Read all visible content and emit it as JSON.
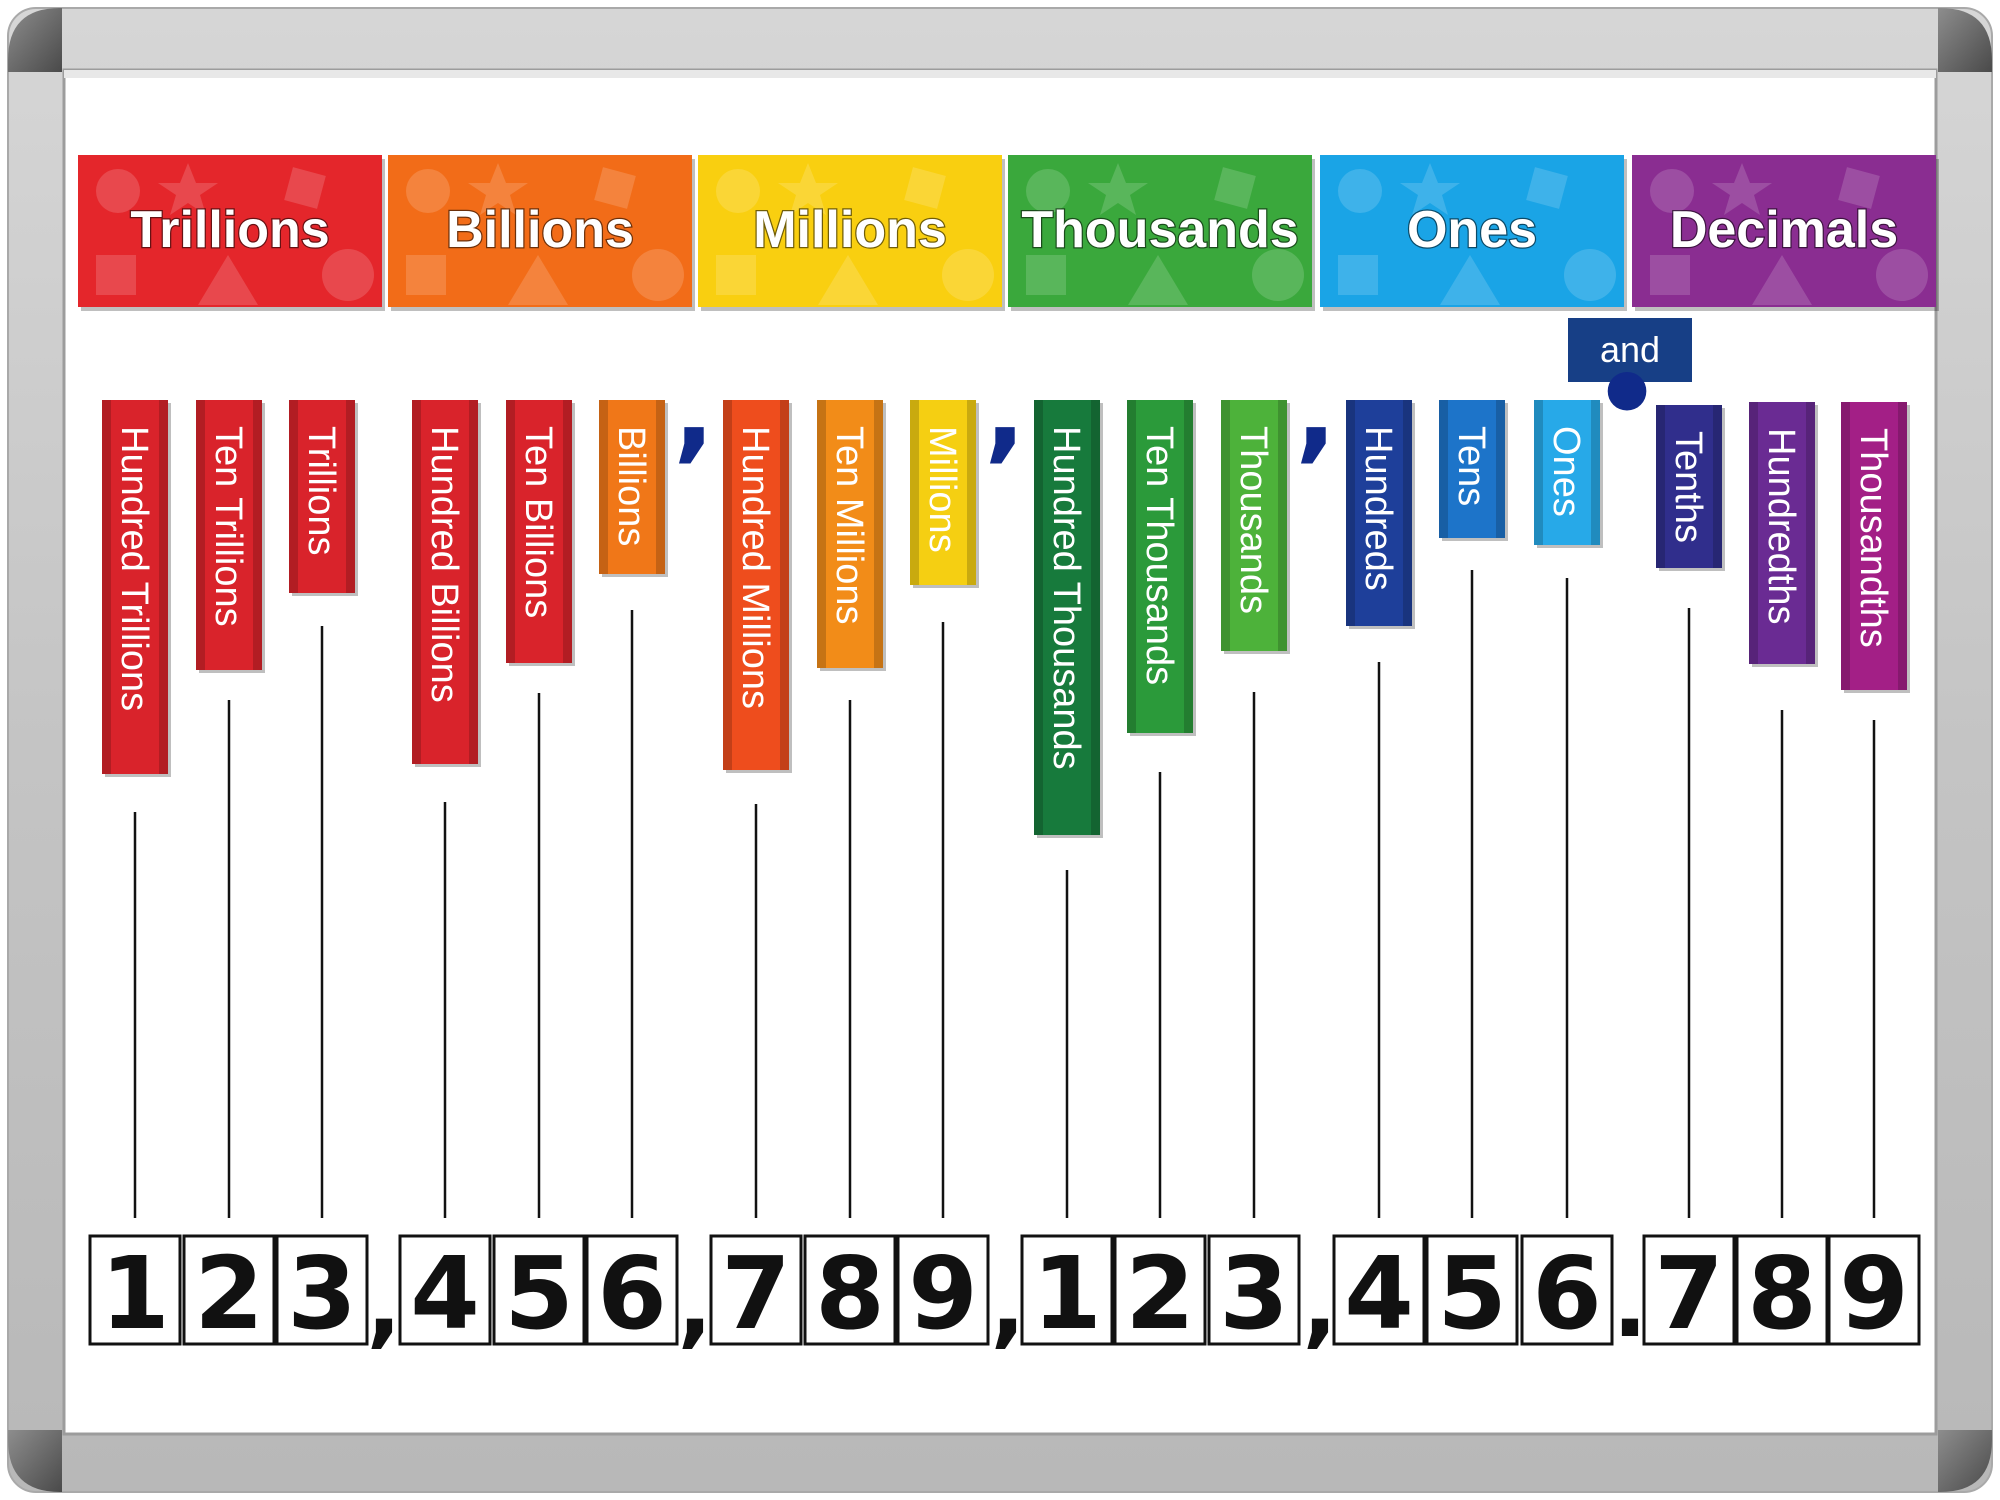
{
  "headers": [
    {
      "label": "Trillions",
      "color": "#e4262b"
    },
    {
      "label": "Billions",
      "color": "#f26c18"
    },
    {
      "label": "Millions",
      "color": "#f9cf10"
    },
    {
      "label": "Thousands",
      "color": "#3aa83c"
    },
    {
      "label": "Ones",
      "color": "#1aa4e6"
    },
    {
      "label": "Decimals",
      "color": "#8a2d91"
    }
  ],
  "connector": {
    "label": "and",
    "color": "#173f86"
  },
  "place_tags": [
    {
      "label": "Hundred Trillions",
      "color": "#d9232b"
    },
    {
      "label": "Ten Trillions",
      "color": "#d9232b"
    },
    {
      "label": "Trillions",
      "color": "#d9232b"
    },
    {
      "label": "Hundred Billions",
      "color": "#d9232b"
    },
    {
      "label": "Ten Billions",
      "color": "#d9232b"
    },
    {
      "label": "Billions",
      "color": "#f07718"
    },
    {
      "label": "Hundred Millions",
      "color": "#ee4d1d"
    },
    {
      "label": "Ten Millions",
      "color": "#f28c18"
    },
    {
      "label": "Millions",
      "color": "#f5cf12"
    },
    {
      "label": "Hundred Thousands",
      "color": "#177a3c"
    },
    {
      "label": "Ten Thousands",
      "color": "#2b9a3a"
    },
    {
      "label": "Thousands",
      "color": "#4db23a"
    },
    {
      "label": "Hundreds",
      "color": "#1e3f9a"
    },
    {
      "label": "Tens",
      "color": "#1d74c9"
    },
    {
      "label": "Ones",
      "color": "#27a9e8"
    },
    {
      "label": "Tenths",
      "color": "#302e8c"
    },
    {
      "label": "Hundredths",
      "color": "#6a2b93"
    },
    {
      "label": "Thousandths",
      "color": "#a31f86"
    }
  ],
  "group_commas": [
    ",",
    ",",
    ","
  ],
  "decimal_marker": "•",
  "digits": [
    "1",
    "2",
    "3",
    "4",
    "5",
    "6",
    "7",
    "8",
    "9",
    "1",
    "2",
    "3",
    "4",
    "5",
    "6",
    "7",
    "8",
    "9"
  ],
  "number_separators": [
    ",",
    ",",
    ",",
    ",",
    "."
  ]
}
